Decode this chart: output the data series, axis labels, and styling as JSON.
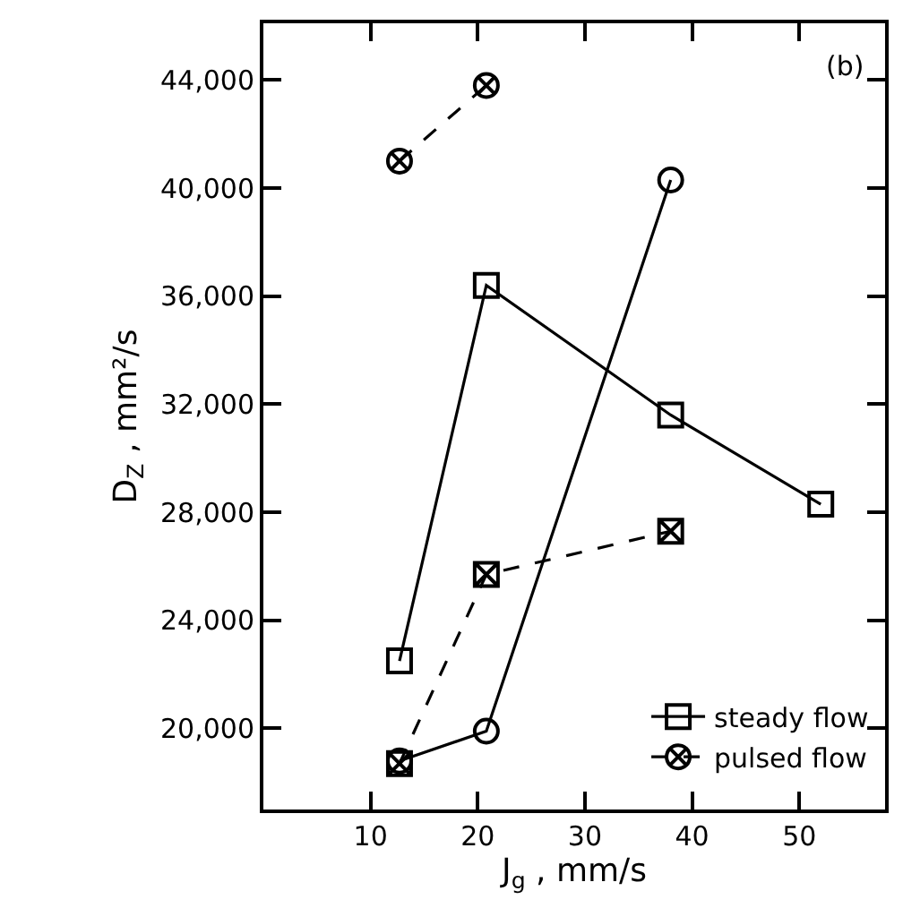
{
  "chart_data": {
    "type": "line",
    "xlabel": "J$_{g}$ , mm/s",
    "ylabel": "D$_{Z}$ , mm²/s",
    "annotations": [
      "(b)"
    ],
    "xlim": [
      0,
      58
    ],
    "xticks": [
      10,
      20,
      30,
      40,
      50
    ],
    "ylim": [
      17000,
      46100
    ],
    "yticks": [
      {
        "value": 20000,
        "label": "20,000"
      },
      {
        "value": 24000,
        "label": "24,000"
      },
      {
        "value": 28000,
        "label": "28,000"
      },
      {
        "value": 32000,
        "label": "32,000"
      },
      {
        "value": 36000,
        "label": "36,000"
      },
      {
        "value": 40000,
        "label": "40,000"
      },
      {
        "value": 44000,
        "label": "44,000"
      }
    ],
    "legend": "bottom right",
    "series": [
      {
        "name": "steady flow",
        "color": "#000000",
        "x": [
          12.7,
          20.8,
          38,
          52
        ],
        "values": [
          22500,
          36400,
          31600,
          28300
        ],
        "marker": "square",
        "line_style": "solid"
      },
      {
        "color": "#000000",
        "x": [
          12.7,
          20.8,
          38
        ],
        "values": [
          18800,
          19900,
          40300
        ],
        "marker": "circle",
        "line_style": "solid"
      },
      {
        "name": "pulsed flow",
        "color": "#000000",
        "x": [
          12.7,
          20.8
        ],
        "values": [
          41000,
          43800
        ],
        "marker": "cross",
        "line_style": "dashed"
      },
      {
        "color": "#000000",
        "x": [
          12.7,
          20.8,
          38
        ],
        "values": [
          18700,
          25700,
          27300
        ],
        "marker": "cross",
        "line_style": "dashed"
      }
    ]
  }
}
